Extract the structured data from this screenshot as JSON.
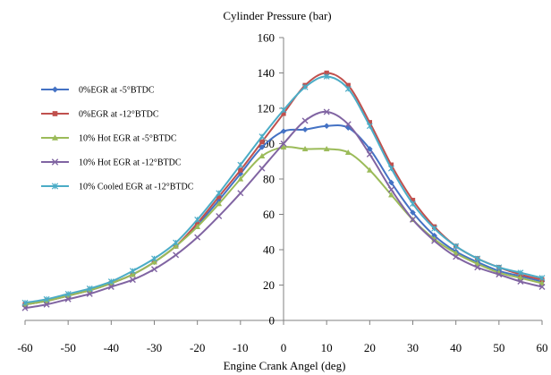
{
  "chart_data": {
    "type": "line",
    "title": "Cylinder Pressure (bar)",
    "xlabel": "Engine Crank Angel (deg)",
    "ylabel": "",
    "xlim": [
      -60,
      60
    ],
    "ylim": [
      0,
      160
    ],
    "xticks": [
      -60,
      -50,
      -40,
      -30,
      -20,
      -10,
      0,
      10,
      20,
      30,
      40,
      50,
      60
    ],
    "yticks": [
      0,
      20,
      40,
      60,
      80,
      100,
      120,
      140,
      160
    ],
    "grid": false,
    "legend_position": "left",
    "x": [
      -60,
      -55,
      -50,
      -45,
      -40,
      -35,
      -30,
      -25,
      -20,
      -15,
      -10,
      -5,
      0,
      5,
      10,
      15,
      20,
      25,
      30,
      35,
      40,
      45,
      50,
      55,
      60
    ],
    "series": [
      {
        "name": "0%EGR at -5°BTDC",
        "color": "#4472C4",
        "marker": "diamond",
        "values": [
          9,
          11,
          14,
          17,
          21,
          26,
          33,
          42,
          54,
          68,
          83,
          98,
          107,
          108,
          110,
          109,
          97,
          78,
          61,
          48,
          39,
          33,
          28,
          25,
          22
        ]
      },
      {
        "name": "0%EGR at -12°BTDC",
        "color": "#C0504D",
        "marker": "square",
        "values": [
          9,
          11,
          14,
          17,
          21,
          26,
          33,
          42,
          55,
          70,
          85,
          101,
          117,
          133,
          140,
          133,
          112,
          88,
          68,
          53,
          42,
          35,
          30,
          26,
          23
        ]
      },
      {
        "name": "10% Hot EGR at -5°BTDC",
        "color": "#9BBB59",
        "marker": "triangle",
        "values": [
          9,
          11,
          14,
          17,
          21,
          26,
          33,
          42,
          53,
          66,
          80,
          93,
          98,
          97,
          97,
          95,
          85,
          71,
          57,
          46,
          38,
          32,
          27,
          24,
          21
        ]
      },
      {
        "name": "10% Hot EGR at -12°BTDC",
        "color": "#8064A2",
        "marker": "x",
        "values": [
          7,
          9,
          12,
          15,
          19,
          23,
          29,
          37,
          47,
          59,
          72,
          86,
          100,
          113,
          118,
          111,
          94,
          74,
          57,
          45,
          36,
          30,
          26,
          22,
          19
        ]
      },
      {
        "name": "10% Cooled EGR at -12°BTDC",
        "color": "#4BACC6",
        "marker": "asterisk",
        "values": [
          10,
          12,
          15,
          18,
          22,
          28,
          35,
          44,
          57,
          72,
          88,
          104,
          119,
          132,
          138,
          131,
          110,
          86,
          66,
          52,
          42,
          35,
          30,
          27,
          24
        ]
      }
    ]
  }
}
